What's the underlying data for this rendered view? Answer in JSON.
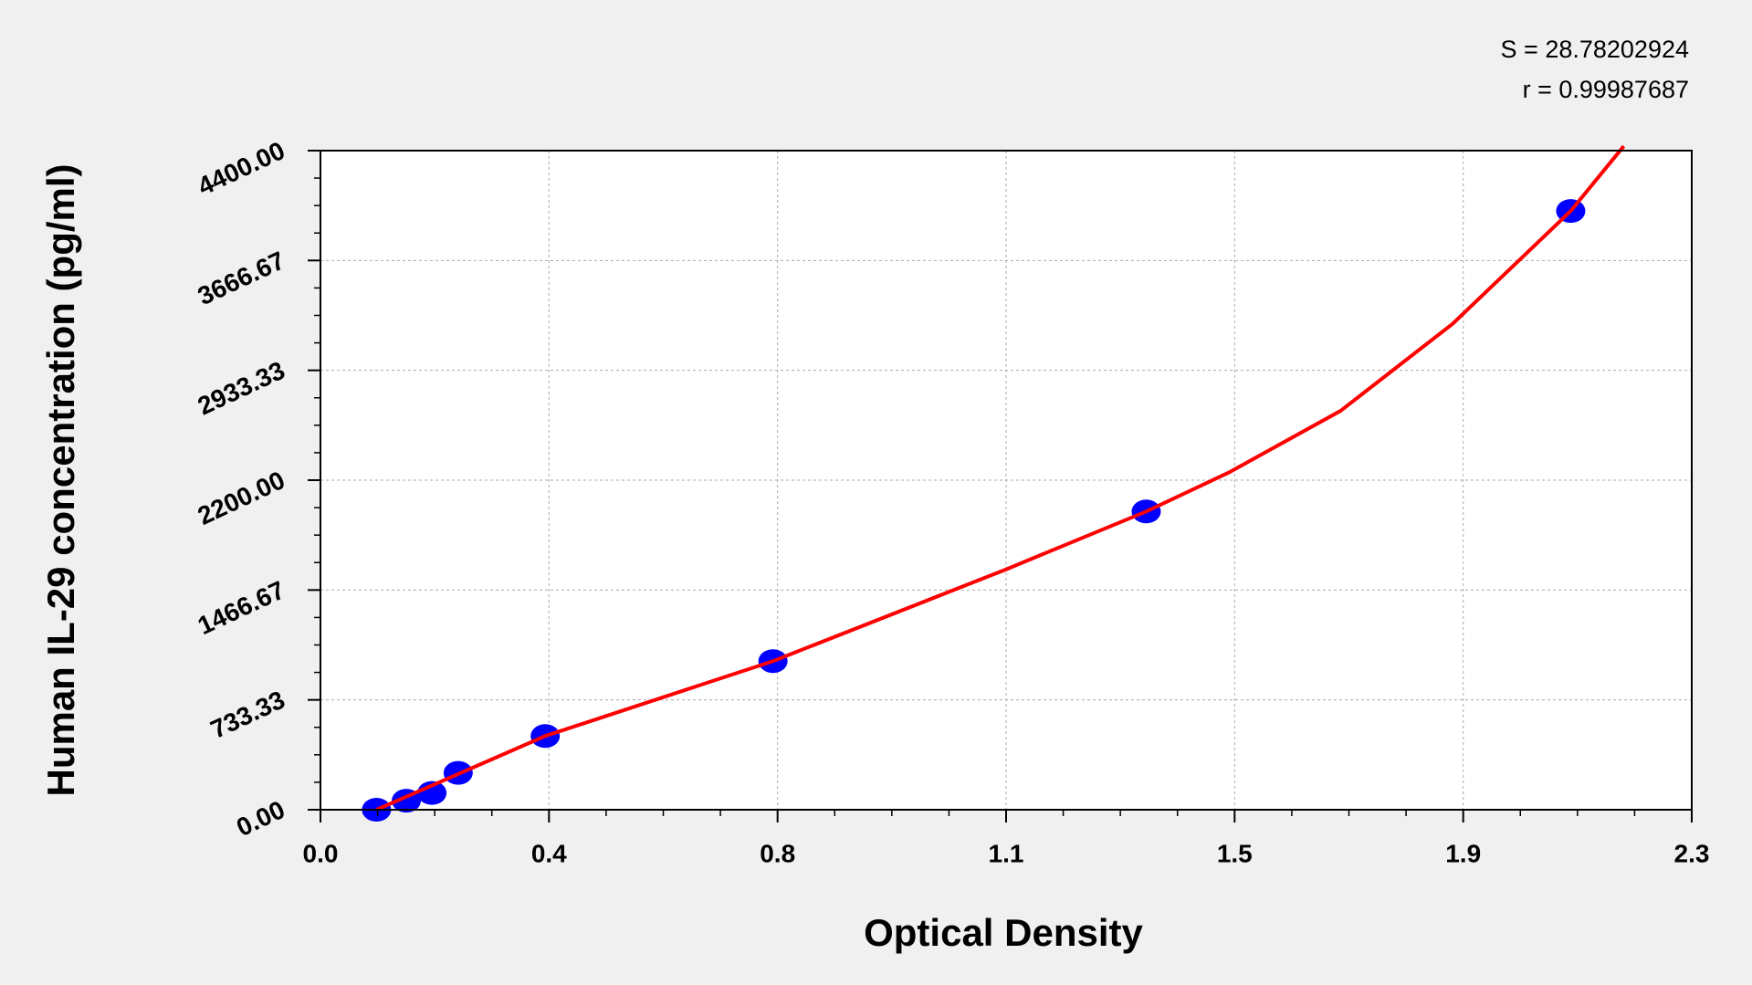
{
  "chart_data": {
    "type": "scatter",
    "xlabel": "Optical Density",
    "ylabel": "Human IL-29 concentration (pg/ml)",
    "annotations": [
      "S = 28.78202924",
      "r = 0.99987687"
    ],
    "xlim": [
      0,
      2.3
    ],
    "xticks": [
      {
        "value": 0,
        "label": "0.0"
      },
      {
        "value": 0.3833,
        "label": "0.4"
      },
      {
        "value": 0.7667,
        "label": "0.8"
      },
      {
        "value": 1.15,
        "label": "1.1"
      },
      {
        "value": 1.5333,
        "label": "1.5"
      },
      {
        "value": 1.9167,
        "label": "1.9"
      },
      {
        "value": 2.3,
        "label": "2.3"
      }
    ],
    "ylim": [
      0,
      4400
    ],
    "yticks": [
      {
        "value": 0,
        "label": "0.00"
      },
      733.33,
      1466.67,
      {
        "value": 2200,
        "label": "2200.00"
      },
      2933.33,
      3666.67,
      {
        "value": 4400,
        "label": "4400.00"
      }
    ],
    "grid": true,
    "points": {
      "color": "#0000ff",
      "x": [
        0.094,
        0.144,
        0.187,
        0.231,
        0.377,
        0.759,
        1.385,
        2.097
      ],
      "y": [
        0,
        60,
        112,
        246,
        492,
        992,
        1991,
        3997
      ]
    },
    "curve": {
      "color": "#ff0000",
      "x": [
        0.094,
        0.377,
        0.759,
        1.149,
        1.385,
        1.524,
        1.711,
        1.899,
        2.097,
        2.186
      ],
      "y": [
        0,
        492,
        992,
        1603,
        1991,
        2252,
        2663,
        3244,
        3997,
        4430
      ]
    }
  }
}
